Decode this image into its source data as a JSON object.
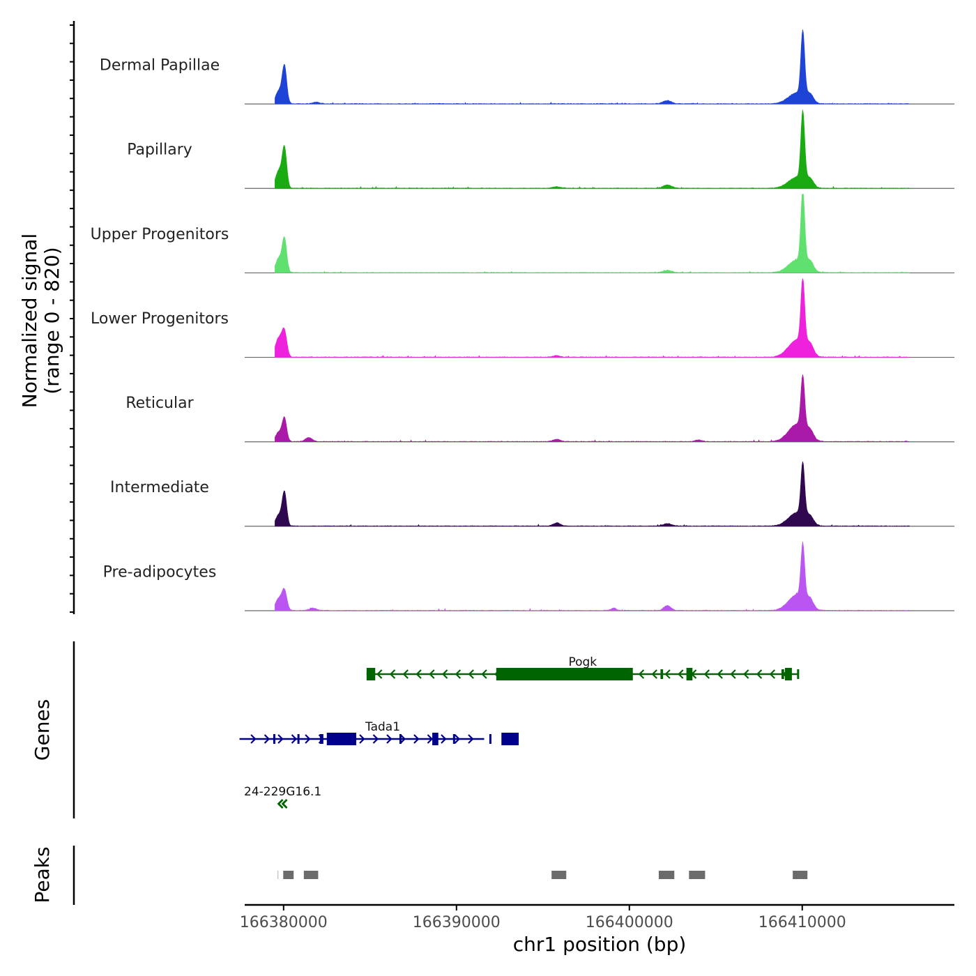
{
  "chart_data": {
    "type": "area",
    "title": "",
    "signal_ylabel_line1": "Normalized signal",
    "signal_ylabel_line2": "(range 0 - 820)",
    "signal_range": [
      0,
      820
    ],
    "xlabel": "chr1 position (bp)",
    "xlim": [
      166377750,
      166418800
    ],
    "x_ticks": [
      166380000,
      166390000,
      166400000,
      166410000
    ],
    "x_tick_labels": [
      "166380000",
      "166390000",
      "166400000",
      "166410000"
    ],
    "tracks": [
      {
        "name": "Dermal Papillae",
        "color": "#1d44d6",
        "peaks": [
          {
            "x": 166379720,
            "h": 0.16,
            "w": 180
          },
          {
            "x": 166380050,
            "h": 0.47,
            "w": 130
          },
          {
            "x": 166381900,
            "h": 0.02,
            "w": 200
          },
          {
            "x": 166402200,
            "h": 0.04,
            "w": 250
          },
          {
            "x": 166409700,
            "h": 0.14,
            "w": 500
          },
          {
            "x": 166410030,
            "h": 0.82,
            "w": 110
          },
          {
            "x": 166410450,
            "h": 0.09,
            "w": 200
          }
        ]
      },
      {
        "name": "Papillary",
        "color": "#1aab12",
        "peaks": [
          {
            "x": 166379720,
            "h": 0.22,
            "w": 180
          },
          {
            "x": 166380050,
            "h": 0.5,
            "w": 130
          },
          {
            "x": 166395800,
            "h": 0.02,
            "w": 200
          },
          {
            "x": 166402200,
            "h": 0.04,
            "w": 250
          },
          {
            "x": 166409700,
            "h": 0.14,
            "w": 500
          },
          {
            "x": 166410030,
            "h": 0.87,
            "w": 110
          },
          {
            "x": 166410450,
            "h": 0.09,
            "w": 200
          }
        ]
      },
      {
        "name": "Upper Progenitors",
        "color": "#5fe06f",
        "peaks": [
          {
            "x": 166379720,
            "h": 0.18,
            "w": 180
          },
          {
            "x": 166380050,
            "h": 0.42,
            "w": 130
          },
          {
            "x": 166402200,
            "h": 0.03,
            "w": 250
          },
          {
            "x": 166409700,
            "h": 0.16,
            "w": 500
          },
          {
            "x": 166410030,
            "h": 0.92,
            "w": 110
          },
          {
            "x": 166410450,
            "h": 0.11,
            "w": 200
          }
        ]
      },
      {
        "name": "Lower Progenitors",
        "color": "#ee22dd",
        "peaks": [
          {
            "x": 166379720,
            "h": 0.24,
            "w": 200
          },
          {
            "x": 166380050,
            "h": 0.3,
            "w": 140
          },
          {
            "x": 166395800,
            "h": 0.02,
            "w": 200
          },
          {
            "x": 166409700,
            "h": 0.22,
            "w": 500
          },
          {
            "x": 166410030,
            "h": 0.82,
            "w": 110
          },
          {
            "x": 166410450,
            "h": 0.12,
            "w": 200
          }
        ]
      },
      {
        "name": "Reticular",
        "color": "#aa1aa8",
        "peaks": [
          {
            "x": 166379720,
            "h": 0.12,
            "w": 180
          },
          {
            "x": 166380050,
            "h": 0.29,
            "w": 130
          },
          {
            "x": 166381450,
            "h": 0.05,
            "w": 200
          },
          {
            "x": 166395800,
            "h": 0.03,
            "w": 200
          },
          {
            "x": 166404000,
            "h": 0.02,
            "w": 200
          },
          {
            "x": 166409700,
            "h": 0.22,
            "w": 500
          },
          {
            "x": 166410030,
            "h": 0.66,
            "w": 110
          },
          {
            "x": 166410450,
            "h": 0.1,
            "w": 200
          }
        ]
      },
      {
        "name": "Intermediate",
        "color": "#300850",
        "peaks": [
          {
            "x": 166379720,
            "h": 0.14,
            "w": 180
          },
          {
            "x": 166380050,
            "h": 0.42,
            "w": 130
          },
          {
            "x": 166395800,
            "h": 0.04,
            "w": 200
          },
          {
            "x": 166402200,
            "h": 0.03,
            "w": 250
          },
          {
            "x": 166409700,
            "h": 0.17,
            "w": 500
          },
          {
            "x": 166410030,
            "h": 0.67,
            "w": 110
          },
          {
            "x": 166410450,
            "h": 0.09,
            "w": 200
          }
        ]
      },
      {
        "name": "Pre-adipocytes",
        "color": "#bb55f2",
        "peaks": [
          {
            "x": 166379720,
            "h": 0.15,
            "w": 200
          },
          {
            "x": 166380050,
            "h": 0.24,
            "w": 140
          },
          {
            "x": 166381700,
            "h": 0.03,
            "w": 200
          },
          {
            "x": 166399100,
            "h": 0.03,
            "w": 150
          },
          {
            "x": 166402200,
            "h": 0.06,
            "w": 200
          },
          {
            "x": 166409700,
            "h": 0.2,
            "w": 500
          },
          {
            "x": 166410030,
            "h": 0.68,
            "w": 110
          },
          {
            "x": 166410450,
            "h": 0.1,
            "w": 200
          }
        ]
      }
    ],
    "genes_label": "Genes",
    "genes": [
      {
        "name": "Pogk",
        "strand": "-",
        "color": "#006400",
        "row": 0,
        "start": 166384800,
        "end": 166409800,
        "exons": [
          [
            166384800,
            166385300,
            1
          ],
          [
            166392300,
            166400200,
            1
          ],
          [
            166401800,
            166401950,
            0
          ],
          [
            166403300,
            166403650,
            1
          ],
          [
            166408800,
            166408950,
            0
          ],
          [
            166409000,
            166409400,
            1
          ],
          [
            166409700,
            166409800,
            0
          ]
        ]
      },
      {
        "name": "Tada1",
        "strand": "+",
        "color": "#00008b",
        "row": 1,
        "start": 166377450,
        "end": 166391600,
        "exons": [
          [
            166379400,
            166379500,
            0
          ],
          [
            166380800,
            166380900,
            0
          ],
          [
            166382100,
            166382300,
            0
          ],
          [
            166382500,
            166384200,
            1
          ],
          [
            166386700,
            166386800,
            0
          ],
          [
            166388600,
            166388950,
            1
          ],
          [
            166389800,
            166389900,
            0
          ],
          [
            166391900,
            166392000,
            0
          ],
          [
            166392600,
            166393600,
            1
          ]
        ]
      },
      {
        "name": "24-229G16.1",
        "strand": "-",
        "color": "#006400",
        "row": 2,
        "start": 166379700,
        "end": 166380200,
        "exons": []
      }
    ],
    "peaks_label": "Peaks",
    "peak_regions": [
      [
        166379640,
        166379700
      ],
      [
        166379980,
        166380580
      ],
      [
        166381170,
        166382000
      ],
      [
        166395500,
        166396350
      ],
      [
        166401700,
        166402600
      ],
      [
        166403450,
        166404380
      ],
      [
        166409450,
        166410300
      ]
    ]
  }
}
